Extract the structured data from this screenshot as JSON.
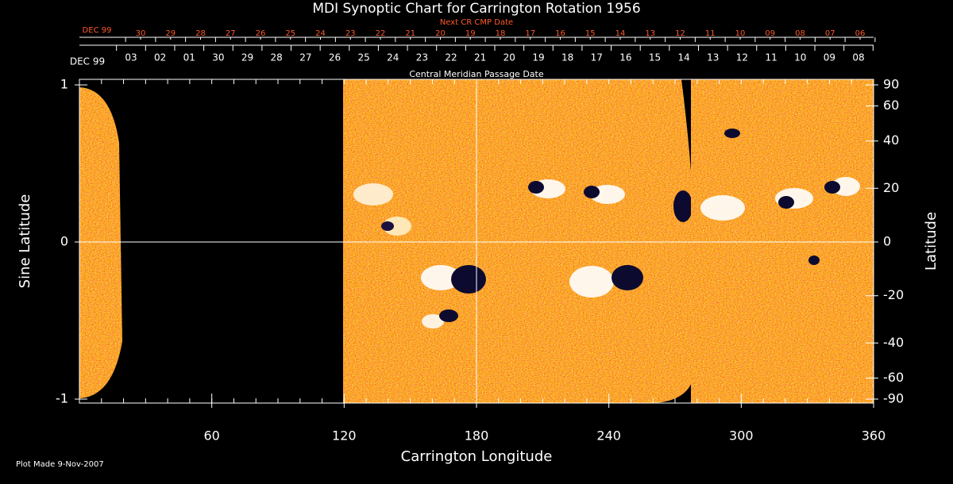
{
  "chart_data": {
    "type": "synoptic-map",
    "title": "MDI Synoptic Chart for Carrington Rotation 1956",
    "xlabel": "Carrington Longitude",
    "ylabel": "Sine Latitude",
    "y2label": "Latitude",
    "xlim": [
      0,
      360
    ],
    "xticks": [
      60,
      120,
      180,
      240,
      300,
      360
    ],
    "ylim": [
      -1,
      1
    ],
    "yticks": [
      -1,
      0,
      1
    ],
    "y2lim": [
      -90,
      90
    ],
    "y2scale": "sine",
    "y2ticks": [
      90,
      60,
      40,
      20,
      0,
      -20,
      -40,
      -60,
      -90
    ],
    "cmp_axis_label": "Central Meridian Passage Date",
    "cmp_month": "DEC 99",
    "cmp_dates": [
      "03",
      "02",
      "01",
      "30",
      "29",
      "28",
      "27",
      "26",
      "25",
      "24",
      "23",
      "22",
      "21",
      "20",
      "19",
      "18",
      "17",
      "16",
      "15",
      "14",
      "13",
      "12",
      "11",
      "10",
      "09",
      "08"
    ],
    "next_cr_label": "Next CR CMP Date",
    "next_cr_month": "DEC 99",
    "next_cr_dates": [
      "30",
      "29",
      "28",
      "27",
      "26",
      "25",
      "24",
      "23",
      "22",
      "21",
      "20",
      "19",
      "18",
      "17",
      "16",
      "15",
      "14",
      "13",
      "12",
      "11",
      "10",
      "09",
      "08",
      "07",
      "06"
    ],
    "grid": true,
    "footer": "Plot Made  9-Nov-2007"
  }
}
